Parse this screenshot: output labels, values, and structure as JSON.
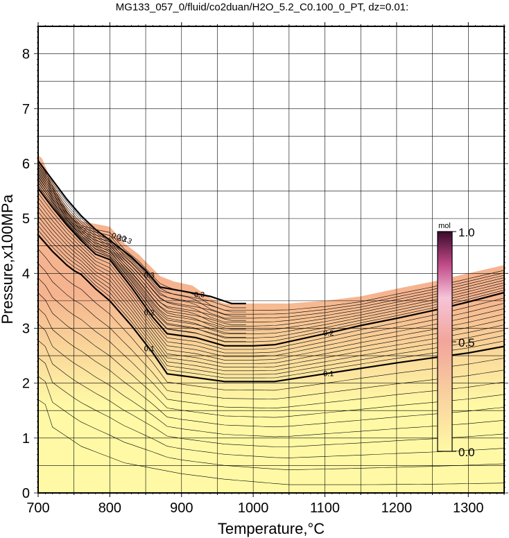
{
  "chart_data": {
    "type": "contour",
    "title": "MG133_057_0/fluid/co2duan/H2O_5.2_C0.100_0_PT, dz=0.01:",
    "xlabel": "Temperature,°C",
    "ylabel": "Pressure,x100MPa",
    "xlim": [
      700,
      1350
    ],
    "ylim": [
      0,
      8.5
    ],
    "x_ticks": [
      700,
      800,
      900,
      1000,
      1100,
      1200,
      1300
    ],
    "y_ticks": [
      0,
      1,
      2,
      3,
      4,
      5,
      6,
      7,
      8
    ],
    "grid": true,
    "contour_interval": 0.01,
    "colorbar": {
      "unit": "mol",
      "min": 0.0,
      "max": 1.0,
      "tick_labels": [
        "0.0",
        "0.5",
        "1.0"
      ],
      "colors": [
        "#fff9a5",
        "#f9c3a0",
        "#f08a9a",
        "#b3306a",
        "#3a0a2a"
      ]
    },
    "field_region_upper_boundary": {
      "T": [
        700,
        705,
        715,
        725,
        735,
        745,
        760,
        780,
        800,
        820,
        840,
        855,
        870,
        890,
        915,
        940,
        960,
        980,
        1000,
        1050,
        1100,
        1150,
        1200,
        1250,
        1300,
        1350
      ],
      "P": [
        6.15,
        6.1,
        5.8,
        5.55,
        5.3,
        5.1,
        4.95,
        4.9,
        4.85,
        4.55,
        4.35,
        4.15,
        3.95,
        3.85,
        3.78,
        3.55,
        3.45,
        3.45,
        3.45,
        3.45,
        3.5,
        3.58,
        3.72,
        3.85,
        4.0,
        4.15
      ]
    },
    "labeled_contours": [
      {
        "value": 0.1,
        "label": "0.1",
        "T": [
          700,
          720,
          740,
          750,
          760,
          780,
          800,
          830,
          860,
          880,
          920,
          960,
          1000,
          1030,
          1100,
          1150,
          1200,
          1250,
          1300,
          1350
        ],
        "P": [
          4.7,
          4.4,
          4.15,
          4.05,
          3.98,
          3.72,
          3.5,
          3.05,
          2.55,
          2.17,
          2.1,
          2.03,
          2.03,
          2.03,
          2.17,
          2.27,
          2.37,
          2.46,
          2.55,
          2.67
        ]
      },
      {
        "value": 0.2,
        "label": "0.2",
        "T": [
          700,
          720,
          740,
          760,
          780,
          800,
          830,
          860,
          880,
          920,
          960,
          1000,
          1030,
          1100,
          1150,
          1200,
          1250,
          1300,
          1350
        ],
        "P": [
          5.55,
          5.2,
          4.88,
          4.6,
          4.35,
          4.25,
          3.75,
          3.2,
          2.9,
          2.83,
          2.68,
          2.68,
          2.7,
          2.9,
          3.05,
          3.18,
          3.32,
          3.48,
          3.65
        ]
      },
      {
        "value": 0.3,
        "label": "0.3",
        "T": [
          700,
          720,
          740,
          760,
          780,
          800,
          830,
          850,
          870,
          900,
          940,
          970,
          990
        ],
        "P": [
          6.05,
          5.7,
          5.35,
          5.05,
          4.8,
          4.6,
          4.3,
          4.05,
          3.75,
          3.68,
          3.58,
          3.45,
          3.45
        ]
      }
    ],
    "contour_labels_near_top": [
      "0.3",
      "0.3",
      "0.3"
    ]
  }
}
